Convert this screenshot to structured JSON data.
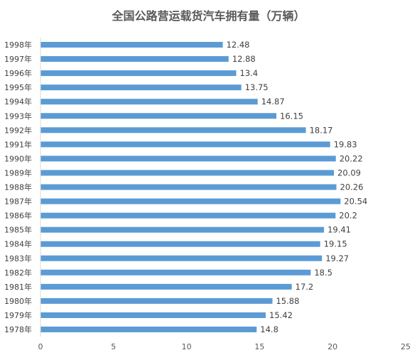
{
  "chart_data": {
    "type": "bar",
    "orientation": "horizontal",
    "title": "全国公路营运载货汽车拥有量（万辆）",
    "categories": [
      "1998年",
      "1997年",
      "1996年",
      "1995年",
      "1994年",
      "1993年",
      "1992年",
      "1991年",
      "1990年",
      "1989年",
      "1988年",
      "1987年",
      "1986年",
      "1985年",
      "1984年",
      "1983年",
      "1982年",
      "1981年",
      "1980年",
      "1979年",
      "1978年"
    ],
    "values": [
      12.48,
      12.88,
      13.4,
      13.75,
      14.87,
      16.15,
      18.17,
      19.83,
      20.22,
      20.09,
      20.26,
      20.54,
      20.2,
      19.41,
      19.15,
      19.27,
      18.5,
      17.2,
      15.88,
      15.42,
      14.8
    ],
    "xlim": [
      0,
      25
    ],
    "xticks": [
      0,
      5,
      10,
      15,
      20,
      25
    ],
    "bar_color": "#5b9bd5",
    "grid": false,
    "legend": "none"
  }
}
